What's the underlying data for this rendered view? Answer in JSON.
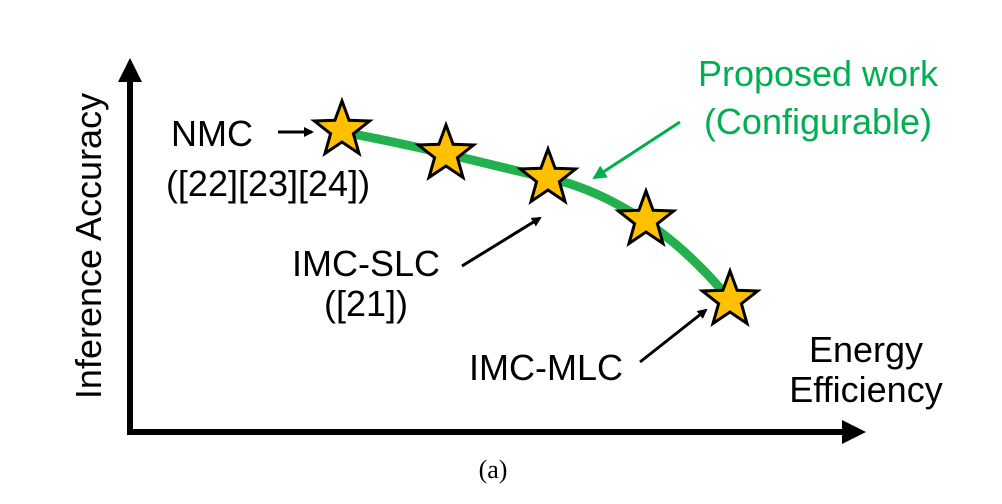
{
  "figure": {
    "y_axis_label": "Inference Accuracy",
    "x_axis_label_line1": "Energy",
    "x_axis_label_line2": "Efficiency",
    "caption": "(a)"
  },
  "annotations": {
    "nmc_line1": "NMC",
    "nmc_line2": "([22][23][24])",
    "imc_slc_line1": "IMC-SLC",
    "imc_slc_line2": "([21])",
    "imc_mlc": "IMC-MLC",
    "proposed_line1": "Proposed work",
    "proposed_line2": "(Configurable)"
  },
  "colors": {
    "curve": "#22b14c",
    "proposed_text": "#00b050",
    "star_fill": "#ffc000",
    "star_stroke": "#000000",
    "axis": "#000000"
  },
  "design_points": [
    {
      "id": "nmc",
      "order": 1
    },
    {
      "id": "mid-1",
      "order": 2
    },
    {
      "id": "imc-slc",
      "order": 3
    },
    {
      "id": "mid-2",
      "order": 4
    },
    {
      "id": "imc-mlc",
      "order": 5
    }
  ]
}
